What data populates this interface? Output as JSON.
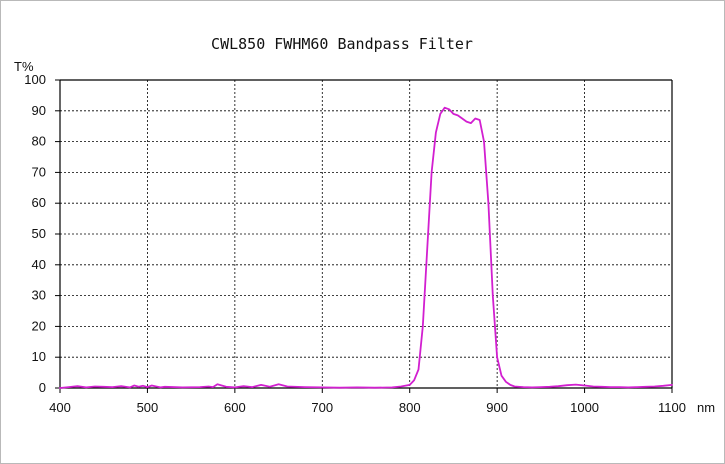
{
  "chart_data": {
    "type": "line",
    "title": "CWL850 FWHM60 Bandpass Filter",
    "ylabel": "T%",
    "xlabel": "nm",
    "xlim": [
      400,
      1100
    ],
    "ylim": [
      0,
      100
    ],
    "x_ticks": [
      400,
      500,
      600,
      700,
      800,
      900,
      1000,
      1100
    ],
    "y_ticks": [
      0,
      10,
      20,
      30,
      40,
      50,
      60,
      70,
      80,
      90,
      100
    ],
    "grid": true,
    "colors": {
      "series": "#d21fd0",
      "grid": "#000000",
      "axis": "#000000"
    },
    "series": [
      {
        "x": [
          400,
          410,
          420,
          430,
          440,
          450,
          460,
          470,
          480,
          485,
          490,
          495,
          500,
          505,
          510,
          515,
          520,
          540,
          560,
          570,
          575,
          580,
          590,
          600,
          610,
          620,
          630,
          640,
          650,
          660,
          680,
          700,
          720,
          740,
          760,
          780,
          790,
          800,
          805,
          810,
          815,
          820,
          825,
          830,
          835,
          840,
          845,
          850,
          855,
          860,
          865,
          870,
          875,
          880,
          885,
          890,
          895,
          900,
          905,
          910,
          915,
          920,
          930,
          940,
          950,
          960,
          970,
          980,
          990,
          1000,
          1010,
          1020,
          1030,
          1040,
          1050,
          1060,
          1070,
          1080,
          1090,
          1100
        ],
        "y": [
          0,
          0.3,
          0.6,
          0.2,
          0.5,
          0.4,
          0.3,
          0.6,
          0.2,
          0.8,
          0.4,
          0.7,
          0.3,
          0.8,
          0.5,
          0.2,
          0.4,
          0.2,
          0.3,
          0.5,
          0.3,
          1.2,
          0.4,
          0.2,
          0.6,
          0.3,
          1.0,
          0.4,
          1.2,
          0.5,
          0.3,
          0.2,
          0.1,
          0.2,
          0.1,
          0.2,
          0.5,
          1.0,
          2.5,
          6,
          20,
          45,
          70,
          83,
          89,
          91,
          90.5,
          89,
          88.5,
          87.5,
          86.5,
          86,
          87.5,
          87,
          80,
          60,
          30,
          10,
          4,
          2,
          1,
          0.5,
          0.3,
          0.2,
          0.3,
          0.4,
          0.6,
          0.9,
          1.1,
          0.8,
          0.5,
          0.4,
          0.3,
          0.3,
          0.2,
          0.3,
          0.4,
          0.5,
          0.7,
          1.0
        ]
      }
    ]
  }
}
